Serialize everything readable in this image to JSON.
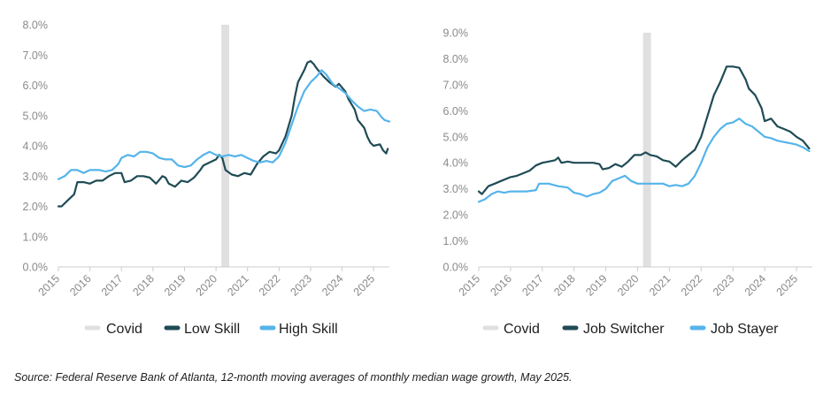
{
  "source": "Source: Federal Reserve Bank of Atlanta, 12-month moving averages of monthly median wage growth, May 2025.",
  "colors": {
    "covid": "#e0e0e0",
    "dark": "#1f4b55",
    "light": "#55b4ea",
    "axis": "#cccccc",
    "tick_text": "#8a8a8a"
  },
  "chart_data": [
    {
      "type": "line",
      "xlim": [
        2015.0,
        2025.5
      ],
      "ylim": [
        0,
        8
      ],
      "y_ticks": [
        "0.0%",
        "1.0%",
        "2.0%",
        "3.0%",
        "4.0%",
        "5.0%",
        "6.0%",
        "7.0%",
        "8.0%"
      ],
      "x_ticks": [
        "2015",
        "2016",
        "2017",
        "2018",
        "2019",
        "2020",
        "2021",
        "2022",
        "2023",
        "2024",
        "2025"
      ],
      "covid_band": [
        2020.17,
        2020.42
      ],
      "legend": [
        {
          "label": "Covid",
          "color": "#e0e0e0"
        },
        {
          "label": "Low Skill",
          "color": "#1f4b55"
        },
        {
          "label": "High Skill",
          "color": "#55b4ea"
        }
      ],
      "series": [
        {
          "name": "Low Skill",
          "color": "#1f4b55",
          "points": [
            [
              2015.0,
              2.0
            ],
            [
              2015.1,
              2.0
            ],
            [
              2015.3,
              2.2
            ],
            [
              2015.5,
              2.4
            ],
            [
              2015.6,
              2.8
            ],
            [
              2015.8,
              2.8
            ],
            [
              2016.0,
              2.75
            ],
            [
              2016.2,
              2.85
            ],
            [
              2016.4,
              2.85
            ],
            [
              2016.6,
              3.0
            ],
            [
              2016.8,
              3.1
            ],
            [
              2017.0,
              3.1
            ],
            [
              2017.1,
              2.8
            ],
            [
              2017.3,
              2.85
            ],
            [
              2017.5,
              3.0
            ],
            [
              2017.7,
              3.0
            ],
            [
              2017.9,
              2.95
            ],
            [
              2018.1,
              2.75
            ],
            [
              2018.3,
              3.0
            ],
            [
              2018.4,
              2.95
            ],
            [
              2018.5,
              2.75
            ],
            [
              2018.7,
              2.65
            ],
            [
              2018.9,
              2.85
            ],
            [
              2019.1,
              2.8
            ],
            [
              2019.3,
              2.95
            ],
            [
              2019.5,
              3.2
            ],
            [
              2019.6,
              3.35
            ],
            [
              2019.8,
              3.45
            ],
            [
              2020.0,
              3.55
            ],
            [
              2020.1,
              3.7
            ],
            [
              2020.2,
              3.6
            ],
            [
              2020.3,
              3.2
            ],
            [
              2020.5,
              3.05
            ],
            [
              2020.7,
              3.0
            ],
            [
              2020.9,
              3.1
            ],
            [
              2021.1,
              3.05
            ],
            [
              2021.3,
              3.4
            ],
            [
              2021.5,
              3.65
            ],
            [
              2021.7,
              3.8
            ],
            [
              2021.9,
              3.75
            ],
            [
              2022.0,
              3.85
            ],
            [
              2022.2,
              4.3
            ],
            [
              2022.4,
              5.0
            ],
            [
              2022.5,
              5.6
            ],
            [
              2022.6,
              6.1
            ],
            [
              2022.8,
              6.5
            ],
            [
              2022.9,
              6.75
            ],
            [
              2023.0,
              6.8
            ],
            [
              2023.1,
              6.7
            ],
            [
              2023.2,
              6.55
            ],
            [
              2023.4,
              6.3
            ],
            [
              2023.6,
              6.1
            ],
            [
              2023.8,
              5.95
            ],
            [
              2023.9,
              6.05
            ],
            [
              2024.1,
              5.8
            ],
            [
              2024.2,
              5.55
            ],
            [
              2024.4,
              5.2
            ],
            [
              2024.5,
              4.85
            ],
            [
              2024.7,
              4.6
            ],
            [
              2024.8,
              4.3
            ],
            [
              2024.9,
              4.1
            ],
            [
              2025.0,
              4.0
            ],
            [
              2025.2,
              4.05
            ],
            [
              2025.3,
              3.85
            ],
            [
              2025.4,
              3.75
            ],
            [
              2025.45,
              3.9
            ]
          ]
        },
        {
          "name": "High Skill",
          "color": "#55b4ea",
          "points": [
            [
              2015.0,
              2.9
            ],
            [
              2015.2,
              3.0
            ],
            [
              2015.4,
              3.2
            ],
            [
              2015.6,
              3.2
            ],
            [
              2015.8,
              3.1
            ],
            [
              2016.0,
              3.2
            ],
            [
              2016.3,
              3.2
            ],
            [
              2016.5,
              3.15
            ],
            [
              2016.7,
              3.2
            ],
            [
              2016.9,
              3.4
            ],
            [
              2017.0,
              3.6
            ],
            [
              2017.2,
              3.7
            ],
            [
              2017.4,
              3.65
            ],
            [
              2017.6,
              3.8
            ],
            [
              2017.8,
              3.8
            ],
            [
              2018.0,
              3.75
            ],
            [
              2018.2,
              3.6
            ],
            [
              2018.4,
              3.55
            ],
            [
              2018.6,
              3.55
            ],
            [
              2018.8,
              3.35
            ],
            [
              2019.0,
              3.3
            ],
            [
              2019.2,
              3.35
            ],
            [
              2019.4,
              3.55
            ],
            [
              2019.6,
              3.7
            ],
            [
              2019.8,
              3.8
            ],
            [
              2020.0,
              3.7
            ],
            [
              2020.2,
              3.65
            ],
            [
              2020.4,
              3.7
            ],
            [
              2020.6,
              3.65
            ],
            [
              2020.8,
              3.7
            ],
            [
              2021.0,
              3.6
            ],
            [
              2021.2,
              3.5
            ],
            [
              2021.4,
              3.45
            ],
            [
              2021.6,
              3.5
            ],
            [
              2021.8,
              3.45
            ],
            [
              2022.0,
              3.65
            ],
            [
              2022.2,
              4.1
            ],
            [
              2022.4,
              4.7
            ],
            [
              2022.6,
              5.3
            ],
            [
              2022.8,
              5.8
            ],
            [
              2023.0,
              6.1
            ],
            [
              2023.2,
              6.3
            ],
            [
              2023.35,
              6.5
            ],
            [
              2023.5,
              6.35
            ],
            [
              2023.7,
              6.05
            ],
            [
              2023.9,
              5.9
            ],
            [
              2024.1,
              5.75
            ],
            [
              2024.3,
              5.5
            ],
            [
              2024.5,
              5.3
            ],
            [
              2024.7,
              5.15
            ],
            [
              2024.9,
              5.2
            ],
            [
              2025.1,
              5.15
            ],
            [
              2025.25,
              4.95
            ],
            [
              2025.35,
              4.85
            ],
            [
              2025.5,
              4.8
            ]
          ]
        }
      ]
    },
    {
      "type": "line",
      "xlim": [
        2015.0,
        2025.5
      ],
      "ylim": [
        0,
        9
      ],
      "y_ticks": [
        "0.0%",
        "1.0%",
        "2.0%",
        "3.0%",
        "4.0%",
        "5.0%",
        "6.0%",
        "7.0%",
        "8.0%",
        "9.0%"
      ],
      "x_ticks": [
        "2015",
        "2016",
        "2017",
        "2018",
        "2019",
        "2020",
        "2021",
        "2022",
        "2023",
        "2024",
        "2025"
      ],
      "covid_band": [
        2020.17,
        2020.42
      ],
      "legend": [
        {
          "label": "Covid",
          "color": "#e0e0e0"
        },
        {
          "label": "Job Switcher",
          "color": "#1f4b55"
        },
        {
          "label": "Job Stayer",
          "color": "#55b4ea"
        }
      ],
      "series": [
        {
          "name": "Job Switcher",
          "color": "#1f4b55",
          "points": [
            [
              2015.0,
              2.9
            ],
            [
              2015.1,
              2.8
            ],
            [
              2015.3,
              3.1
            ],
            [
              2015.5,
              3.2
            ],
            [
              2015.7,
              3.3
            ],
            [
              2016.0,
              3.45
            ],
            [
              2016.2,
              3.5
            ],
            [
              2016.4,
              3.6
            ],
            [
              2016.6,
              3.7
            ],
            [
              2016.8,
              3.9
            ],
            [
              2017.0,
              4.0
            ],
            [
              2017.2,
              4.05
            ],
            [
              2017.4,
              4.1
            ],
            [
              2017.5,
              4.2
            ],
            [
              2017.6,
              4.0
            ],
            [
              2017.8,
              4.05
            ],
            [
              2018.0,
              4.0
            ],
            [
              2018.3,
              4.0
            ],
            [
              2018.6,
              4.0
            ],
            [
              2018.8,
              3.95
            ],
            [
              2018.9,
              3.75
            ],
            [
              2019.1,
              3.8
            ],
            [
              2019.3,
              3.95
            ],
            [
              2019.5,
              3.85
            ],
            [
              2019.7,
              4.05
            ],
            [
              2019.9,
              4.3
            ],
            [
              2020.1,
              4.3
            ],
            [
              2020.25,
              4.4
            ],
            [
              2020.4,
              4.3
            ],
            [
              2020.6,
              4.25
            ],
            [
              2020.8,
              4.1
            ],
            [
              2021.0,
              4.05
            ],
            [
              2021.2,
              3.85
            ],
            [
              2021.4,
              4.1
            ],
            [
              2021.6,
              4.3
            ],
            [
              2021.8,
              4.5
            ],
            [
              2022.0,
              5.0
            ],
            [
              2022.2,
              5.8
            ],
            [
              2022.4,
              6.6
            ],
            [
              2022.6,
              7.1
            ],
            [
              2022.8,
              7.7
            ],
            [
              2023.0,
              7.7
            ],
            [
              2023.2,
              7.65
            ],
            [
              2023.4,
              7.2
            ],
            [
              2023.5,
              6.85
            ],
            [
              2023.7,
              6.6
            ],
            [
              2023.9,
              6.1
            ],
            [
              2024.0,
              5.6
            ],
            [
              2024.2,
              5.7
            ],
            [
              2024.4,
              5.4
            ],
            [
              2024.6,
              5.3
            ],
            [
              2024.8,
              5.2
            ],
            [
              2025.0,
              5.0
            ],
            [
              2025.2,
              4.85
            ],
            [
              2025.4,
              4.55
            ]
          ]
        },
        {
          "name": "Job Stayer",
          "color": "#55b4ea",
          "points": [
            [
              2015.0,
              2.5
            ],
            [
              2015.2,
              2.6
            ],
            [
              2015.4,
              2.8
            ],
            [
              2015.6,
              2.9
            ],
            [
              2015.8,
              2.85
            ],
            [
              2016.0,
              2.9
            ],
            [
              2016.5,
              2.9
            ],
            [
              2016.8,
              2.95
            ],
            [
              2016.9,
              3.2
            ],
            [
              2017.2,
              3.2
            ],
            [
              2017.5,
              3.1
            ],
            [
              2017.8,
              3.05
            ],
            [
              2018.0,
              2.85
            ],
            [
              2018.2,
              2.8
            ],
            [
              2018.4,
              2.7
            ],
            [
              2018.6,
              2.8
            ],
            [
              2018.8,
              2.85
            ],
            [
              2019.0,
              3.0
            ],
            [
              2019.2,
              3.3
            ],
            [
              2019.4,
              3.4
            ],
            [
              2019.6,
              3.5
            ],
            [
              2019.8,
              3.3
            ],
            [
              2020.0,
              3.2
            ],
            [
              2020.3,
              3.2
            ],
            [
              2020.6,
              3.2
            ],
            [
              2020.8,
              3.2
            ],
            [
              2021.0,
              3.1
            ],
            [
              2021.2,
              3.15
            ],
            [
              2021.4,
              3.1
            ],
            [
              2021.6,
              3.2
            ],
            [
              2021.8,
              3.5
            ],
            [
              2022.0,
              4.0
            ],
            [
              2022.2,
              4.6
            ],
            [
              2022.4,
              5.0
            ],
            [
              2022.6,
              5.3
            ],
            [
              2022.8,
              5.5
            ],
            [
              2023.0,
              5.55
            ],
            [
              2023.2,
              5.7
            ],
            [
              2023.4,
              5.5
            ],
            [
              2023.6,
              5.4
            ],
            [
              2023.8,
              5.2
            ],
            [
              2024.0,
              5.0
            ],
            [
              2024.2,
              4.95
            ],
            [
              2024.4,
              4.85
            ],
            [
              2024.6,
              4.8
            ],
            [
              2024.8,
              4.75
            ],
            [
              2025.0,
              4.7
            ],
            [
              2025.2,
              4.6
            ],
            [
              2025.4,
              4.45
            ]
          ]
        }
      ]
    }
  ]
}
